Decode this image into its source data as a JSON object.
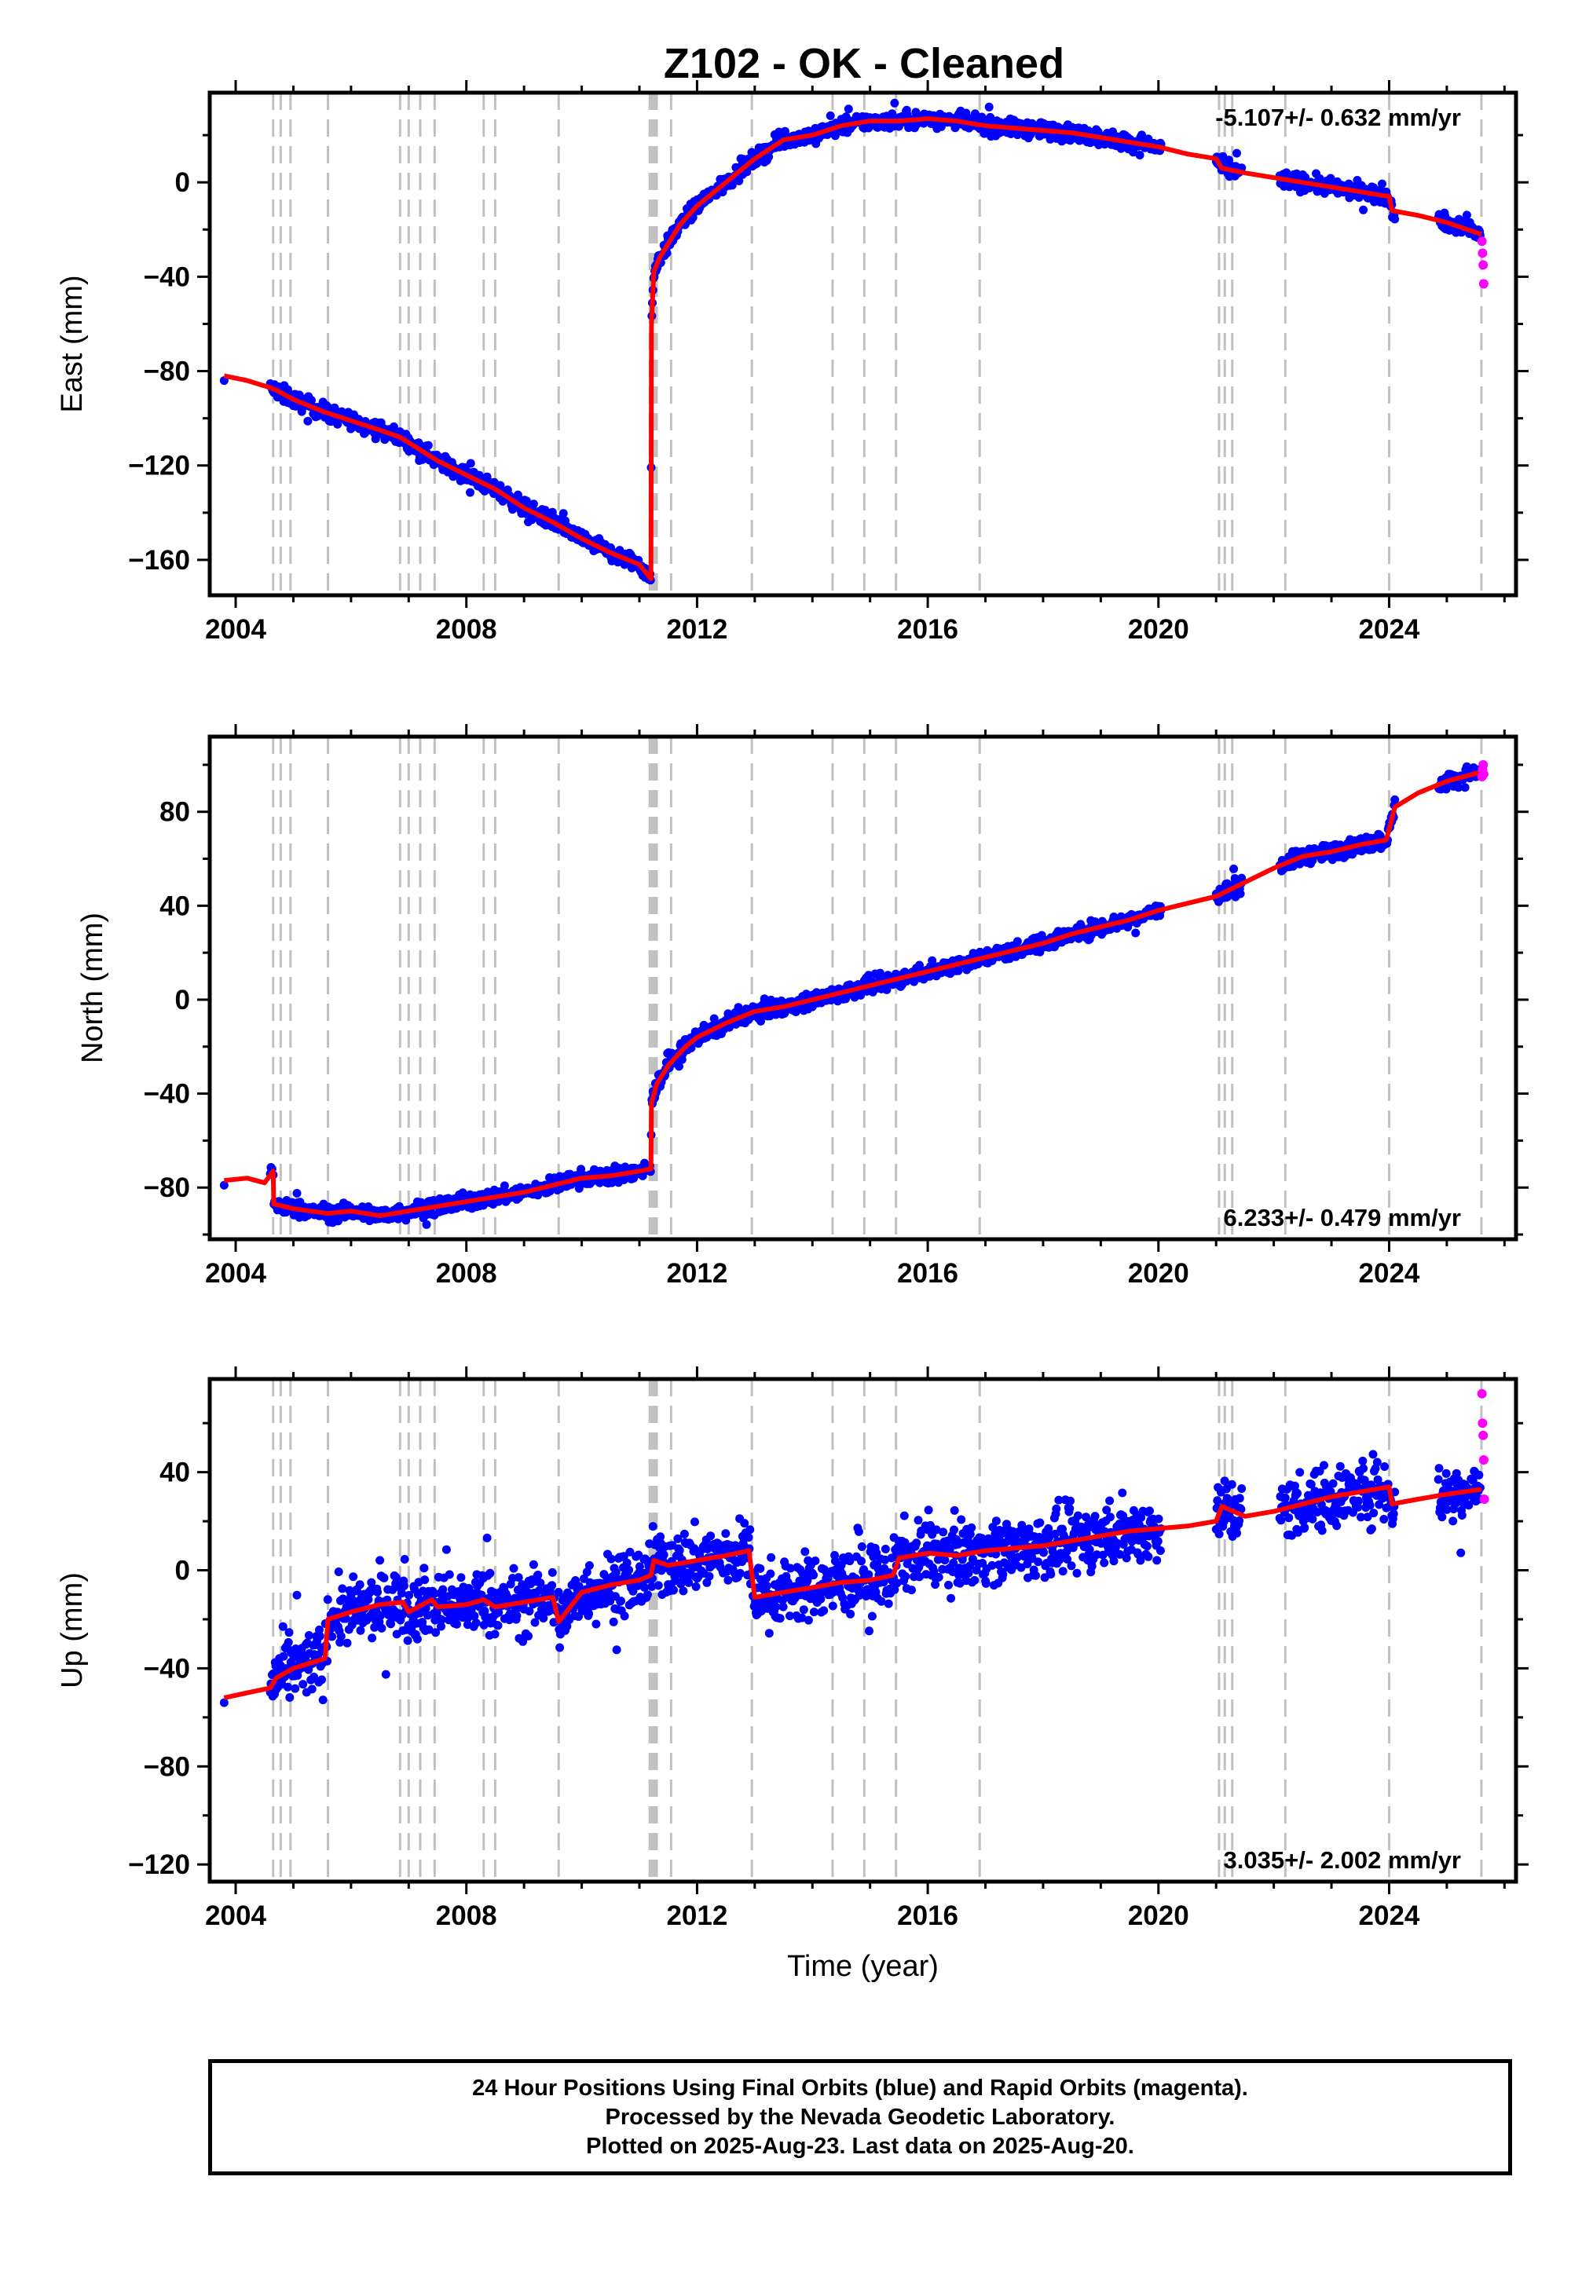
{
  "title": "Z102  - OK - Cleaned",
  "footer": {
    "line1": "24 Hour Positions Using Final Orbits (blue) and Rapid Orbits (magenta).",
    "line2": "Processed by the Nevada Geodetic Laboratory.",
    "line3": "Plotted on 2025-Aug-23. Last data on 2025-Aug-20."
  },
  "colors": {
    "final": "#0000ff",
    "rapid": "#ff00ff",
    "model": "#ff0000",
    "event_lines": "#c0c0c0"
  },
  "chart_data": [
    {
      "type": "scatter",
      "component": "East",
      "ylabel": "East (mm)",
      "xlabel": "",
      "x_ticks": [
        2004,
        2008,
        2012,
        2016,
        2020,
        2024
      ],
      "y_ticks": [
        -160,
        -120,
        -80,
        -40,
        0
      ],
      "xlim": [
        2003.55,
        2026.2
      ],
      "ylim": [
        -175,
        38
      ],
      "rate": "-5.107+/- 0.632 mm/yr",
      "rate_position": "top-right",
      "event_lines": [
        2004.65,
        2004.78,
        2004.95,
        2005.6,
        2006.85,
        2007.0,
        2007.2,
        2007.45,
        2008.3,
        2008.5,
        2009.6,
        2011.18,
        2011.22,
        2011.26,
        2011.3,
        2011.55,
        2012.95,
        2014.35,
        2014.9,
        2015.45,
        2016.9,
        2021.05,
        2021.15,
        2021.28,
        2022.2,
        2024.0,
        2025.6
      ],
      "model": {
        "x": [
          2003.8,
          2004.2,
          2004.6,
          2004.7,
          2005.0,
          2005.5,
          2006.0,
          2006.5,
          2006.85,
          2007.5,
          2008.0,
          2008.5,
          2009.0,
          2009.5,
          2010.0,
          2010.5,
          2011.0,
          2011.2,
          2011.21,
          2011.25,
          2011.35,
          2011.5,
          2011.7,
          2012.0,
          2012.5,
          2013.0,
          2013.5,
          2014.0,
          2014.5,
          2015.0,
          2015.5,
          2016.0,
          2016.5,
          2017.0,
          2017.5,
          2018.0,
          2018.5,
          2019.0,
          2019.5,
          2020.0,
          2020.5,
          2021.0,
          2021.1,
          2021.5,
          2022.0,
          2022.5,
          2023.0,
          2023.5,
          2024.0,
          2024.05,
          2024.5,
          2025.0,
          2025.6
        ],
        "y": [
          -82,
          -84,
          -87,
          -88,
          -92,
          -97,
          -101,
          -105,
          -108,
          -118,
          -124,
          -130,
          -138,
          -144,
          -151,
          -157,
          -162,
          -168,
          -60,
          -38,
          -32,
          -26,
          -18,
          -10,
          0,
          10,
          18,
          20,
          24,
          26,
          26,
          27,
          26,
          24,
          23,
          22,
          21,
          19,
          17,
          15,
          12,
          10,
          6,
          4,
          2,
          0,
          -2,
          -4,
          -6,
          -12,
          -14,
          -17,
          -22
        ]
      },
      "rapid_points": {
        "x": [
          2025.61,
          2025.62,
          2025.63,
          2025.64
        ],
        "y": [
          -25,
          -30,
          -35,
          -43
        ]
      }
    },
    {
      "type": "scatter",
      "component": "North",
      "ylabel": "North (mm)",
      "xlabel": "",
      "x_ticks": [
        2004,
        2008,
        2012,
        2016,
        2020,
        2024
      ],
      "y_ticks": [
        -80,
        -40,
        0,
        40,
        80
      ],
      "xlim": [
        2003.55,
        2026.2
      ],
      "ylim": [
        -102,
        112
      ],
      "rate": "6.233+/- 0.479 mm/yr",
      "rate_position": "bottom-right",
      "event_lines": [
        2004.65,
        2004.78,
        2004.95,
        2005.6,
        2006.85,
        2007.0,
        2007.2,
        2007.45,
        2008.3,
        2008.5,
        2009.6,
        2011.18,
        2011.22,
        2011.26,
        2011.3,
        2011.55,
        2012.95,
        2014.35,
        2014.9,
        2015.45,
        2016.9,
        2021.05,
        2021.15,
        2021.28,
        2022.2,
        2024.0,
        2025.6
      ],
      "model": {
        "x": [
          2003.8,
          2004.2,
          2004.5,
          2004.65,
          2004.66,
          2005.0,
          2005.6,
          2006.0,
          2006.5,
          2007.0,
          2007.5,
          2008.0,
          2008.5,
          2009.0,
          2009.5,
          2010.0,
          2010.5,
          2011.0,
          2011.2,
          2011.21,
          2011.3,
          2011.5,
          2011.8,
          2012.0,
          2012.5,
          2013.0,
          2013.5,
          2014.0,
          2014.5,
          2015.0,
          2015.5,
          2016.0,
          2016.5,
          2017.0,
          2017.5,
          2018.0,
          2018.5,
          2019.0,
          2019.5,
          2020.0,
          2020.5,
          2021.0,
          2021.5,
          2022.0,
          2022.5,
          2023.0,
          2023.5,
          2023.95,
          2024.1,
          2024.5,
          2025.0,
          2025.6
        ],
        "y": [
          -77,
          -76,
          -78,
          -73,
          -87,
          -89,
          -91,
          -90,
          -92,
          -90,
          -88,
          -86,
          -84,
          -82,
          -79,
          -76,
          -75,
          -73,
          -72,
          -44,
          -36,
          -28,
          -20,
          -16,
          -10,
          -5,
          -3,
          0,
          3,
          6,
          9,
          12,
          15,
          18,
          21,
          24,
          28,
          31,
          34,
          38,
          41,
          44,
          50,
          56,
          61,
          63,
          66,
          68,
          82,
          88,
          93,
          97
        ]
      },
      "rapid_points": {
        "x": [
          2025.61,
          2025.62,
          2025.63,
          2025.64
        ],
        "y": [
          95,
          98,
          100,
          96
        ]
      }
    },
    {
      "type": "scatter",
      "component": "Up",
      "ylabel": "Up (mm)",
      "xlabel": "Time (year)",
      "x_ticks": [
        2004,
        2008,
        2012,
        2016,
        2020,
        2024
      ],
      "y_ticks": [
        -120,
        -80,
        -40,
        0,
        40
      ],
      "xlim": [
        2003.55,
        2026.2
      ],
      "ylim": [
        -127,
        78
      ],
      "rate": "3.035+/- 2.002 mm/yr",
      "rate_position": "bottom-right",
      "event_lines": [
        2004.65,
        2004.78,
        2004.95,
        2005.6,
        2006.85,
        2007.0,
        2007.2,
        2007.45,
        2008.3,
        2008.5,
        2009.6,
        2011.18,
        2011.22,
        2011.26,
        2011.3,
        2011.55,
        2012.95,
        2014.35,
        2014.9,
        2015.45,
        2016.9,
        2021.05,
        2021.15,
        2021.28,
        2022.2,
        2024.0,
        2025.6
      ],
      "model": {
        "x": [
          2003.8,
          2004.2,
          2004.6,
          2004.7,
          2005.0,
          2005.55,
          2005.6,
          2006.0,
          2006.5,
          2006.9,
          2007.0,
          2007.4,
          2007.5,
          2008.0,
          2008.3,
          2008.5,
          2009.0,
          2009.5,
          2009.6,
          2010.0,
          2010.5,
          2011.0,
          2011.2,
          2011.25,
          2011.5,
          2012.0,
          2012.5,
          2012.9,
          2013.0,
          2013.5,
          2014.0,
          2014.5,
          2015.0,
          2015.4,
          2015.5,
          2016.0,
          2016.5,
          2017.0,
          2017.5,
          2018.0,
          2018.5,
          2019.0,
          2019.5,
          2020.0,
          2020.5,
          2021.0,
          2021.1,
          2021.5,
          2022.0,
          2022.5,
          2023.0,
          2023.5,
          2024.0,
          2024.05,
          2024.5,
          2025.0,
          2025.6
        ],
        "y": [
          -52,
          -50,
          -48,
          -44,
          -40,
          -36,
          -20,
          -17,
          -14,
          -13,
          -17,
          -12,
          -15,
          -14,
          -12,
          -15,
          -13,
          -11,
          -21,
          -9,
          -6,
          -4,
          -2,
          4,
          2,
          4,
          6,
          8,
          -11,
          -9,
          -7,
          -5,
          -4,
          -2,
          5,
          7,
          6,
          8,
          9,
          10,
          12,
          14,
          16,
          17,
          18,
          20,
          26,
          22,
          24,
          27,
          30,
          32,
          34,
          27,
          29,
          31,
          33
        ]
      },
      "rapid_points": {
        "x": [
          2025.61,
          2025.62,
          2025.63,
          2025.64,
          2025.65
        ],
        "y": [
          72,
          60,
          55,
          45,
          29
        ]
      }
    }
  ]
}
